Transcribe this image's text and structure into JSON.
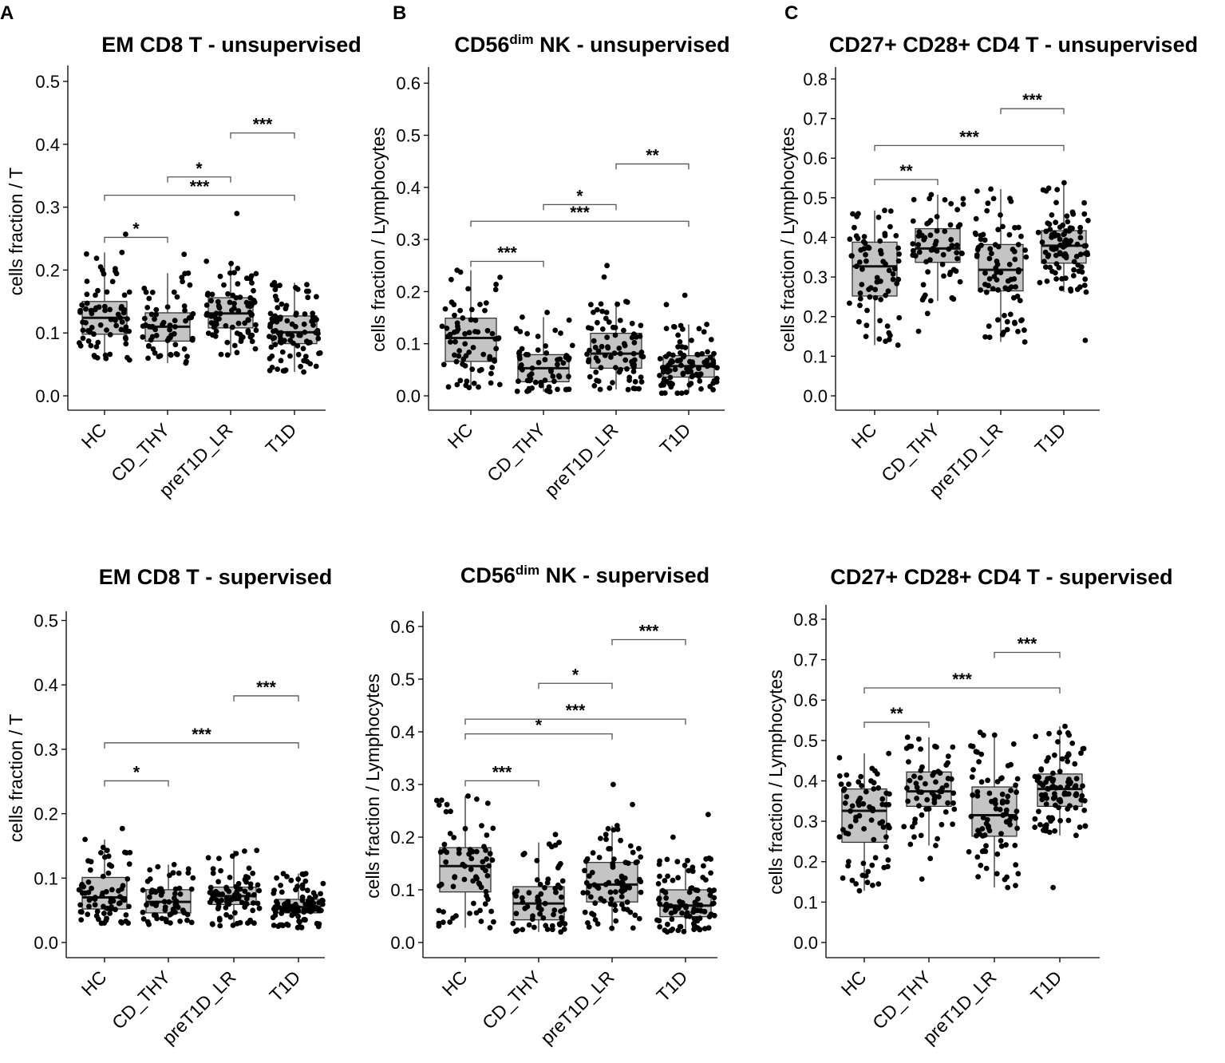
{
  "chart_data": [
    {
      "type": "box",
      "panel_letter": "A",
      "title": "EM CD8 T - unsupervised",
      "title_sup": "",
      "title_rest": "",
      "ylabel": "cells fraction / T",
      "xlabel": "",
      "ylim": [
        0,
        0.52
      ],
      "yticks": [
        "0.0",
        "0.1",
        "0.2",
        "0.3",
        "0.4",
        "0.5"
      ],
      "ytick_values": [
        0,
        0.1,
        0.2,
        0.3,
        0.4,
        0.5
      ],
      "categories": [
        "HC",
        "CD_THY",
        "preT1D_LR",
        "T1D"
      ],
      "boxes": [
        {
          "q1": 0.098,
          "median": 0.124,
          "q3": 0.15,
          "whisker_low": 0.057,
          "whisker_high": 0.228,
          "n": 70,
          "outliers": [
            0.257
          ]
        },
        {
          "q1": 0.087,
          "median": 0.11,
          "q3": 0.132,
          "whisker_low": 0.052,
          "whisker_high": 0.195,
          "n": 60,
          "outliers": [
            0.225
          ]
        },
        {
          "q1": 0.108,
          "median": 0.131,
          "q3": 0.156,
          "whisker_low": 0.065,
          "whisker_high": 0.214,
          "n": 80,
          "outliers": [
            0.29
          ]
        },
        {
          "q1": 0.083,
          "median": 0.101,
          "q3": 0.127,
          "whisker_low": 0.038,
          "whisker_high": 0.18,
          "n": 95,
          "outliers": []
        }
      ],
      "significance": [
        {
          "from": 0,
          "to": 1,
          "label": "*",
          "y": 0.252
        },
        {
          "from": 0,
          "to": 3,
          "label": "***",
          "y": 0.319
        },
        {
          "from": 1,
          "to": 2,
          "label": "*",
          "y": 0.348
        },
        {
          "from": 2,
          "to": 3,
          "label": "***",
          "y": 0.418
        }
      ]
    },
    {
      "type": "box",
      "panel_letter": "B",
      "title": "CD56",
      "title_sup": "dim",
      "title_rest": " NK - unsupervised",
      "ylabel": "cells fraction / Lymphocytes",
      "xlabel": "",
      "ylim": [
        0,
        0.63
      ],
      "yticks": [
        "0.0",
        "0.1",
        "0.2",
        "0.3",
        "0.4",
        "0.5",
        "0.6"
      ],
      "ytick_values": [
        0,
        0.1,
        0.2,
        0.3,
        0.4,
        0.5,
        0.6
      ],
      "categories": [
        "HC",
        "CD_THY",
        "preT1D_LR",
        "T1D"
      ],
      "boxes": [
        {
          "q1": 0.066,
          "median": 0.111,
          "q3": 0.149,
          "whisker_low": 0.016,
          "whisker_high": 0.241,
          "n": 70,
          "outliers": []
        },
        {
          "q1": 0.027,
          "median": 0.053,
          "q3": 0.079,
          "whisker_low": 0.008,
          "whisker_high": 0.151,
          "n": 60,
          "outliers": [
            0.16
          ]
        },
        {
          "q1": 0.053,
          "median": 0.081,
          "q3": 0.12,
          "whisker_low": 0.012,
          "whisker_high": 0.181,
          "n": 80,
          "outliers": [
            0.25,
            0.228
          ]
        },
        {
          "q1": 0.036,
          "median": 0.057,
          "q3": 0.077,
          "whisker_low": 0.005,
          "whisker_high": 0.137,
          "n": 95,
          "outliers": [
            0.193,
            0.175
          ]
        }
      ],
      "significance": [
        {
          "from": 0,
          "to": 1,
          "label": "***",
          "y": 0.258
        },
        {
          "from": 0,
          "to": 3,
          "label": "***",
          "y": 0.335
        },
        {
          "from": 1,
          "to": 2,
          "label": "*",
          "y": 0.367
        },
        {
          "from": 2,
          "to": 3,
          "label": "**",
          "y": 0.445
        }
      ]
    },
    {
      "type": "box",
      "panel_letter": "C",
      "title": "CD27+ CD28+ CD4 T - unsupervised",
      "title_sup": "",
      "title_rest": "",
      "ylabel": "cells fraction / Lymphocytes",
      "xlabel": "",
      "ylim": [
        0,
        0.83
      ],
      "yticks": [
        "0.0",
        "0.1",
        "0.2",
        "0.3",
        "0.4",
        "0.5",
        "0.6",
        "0.7",
        "0.8"
      ],
      "ytick_values": [
        0,
        0.1,
        0.2,
        0.3,
        0.4,
        0.5,
        0.6,
        0.7,
        0.8
      ],
      "categories": [
        "HC",
        "CD_THY",
        "preT1D_LR",
        "T1D"
      ],
      "boxes": [
        {
          "q1": 0.252,
          "median": 0.327,
          "q3": 0.388,
          "whisker_low": 0.128,
          "whisker_high": 0.468,
          "n": 70,
          "outliers": []
        },
        {
          "q1": 0.337,
          "median": 0.372,
          "q3": 0.422,
          "whisker_low": 0.24,
          "whisker_high": 0.508,
          "n": 60,
          "outliers": [
            0.208,
            0.163
          ]
        },
        {
          "q1": 0.265,
          "median": 0.318,
          "q3": 0.382,
          "whisker_low": 0.136,
          "whisker_high": 0.522,
          "n": 80,
          "outliers": []
        },
        {
          "q1": 0.335,
          "median": 0.379,
          "q3": 0.417,
          "whisker_low": 0.262,
          "whisker_high": 0.538,
          "n": 95,
          "outliers": [
            0.14
          ]
        }
      ],
      "significance": [
        {
          "from": 0,
          "to": 1,
          "label": "**",
          "y": 0.546
        },
        {
          "from": 0,
          "to": 3,
          "label": "***",
          "y": 0.632
        },
        {
          "from": 2,
          "to": 3,
          "label": "***",
          "y": 0.725
        }
      ]
    },
    {
      "type": "box",
      "panel_letter": "",
      "title": "EM CD8 T - supervised",
      "title_sup": "",
      "title_rest": "",
      "ylabel": "cells fraction / T",
      "xlabel": "",
      "ylim": [
        0,
        0.52
      ],
      "yticks": [
        "0.0",
        "0.1",
        "0.2",
        "0.3",
        "0.4",
        "0.5"
      ],
      "ytick_values": [
        0,
        0.1,
        0.2,
        0.3,
        0.4,
        0.5
      ],
      "categories": [
        "HC",
        "CD_THY",
        "preT1D_LR",
        "T1D"
      ],
      "boxes": [
        {
          "q1": 0.052,
          "median": 0.07,
          "q3": 0.101,
          "whisker_low": 0.03,
          "whisker_high": 0.16,
          "n": 70,
          "outliers": [
            0.177
          ]
        },
        {
          "q1": 0.046,
          "median": 0.063,
          "q3": 0.082,
          "whisker_low": 0.028,
          "whisker_high": 0.121,
          "n": 60,
          "outliers": []
        },
        {
          "q1": 0.059,
          "median": 0.072,
          "q3": 0.086,
          "whisker_low": 0.026,
          "whisker_high": 0.143,
          "n": 80,
          "outliers": []
        },
        {
          "q1": 0.046,
          "median": 0.055,
          "q3": 0.067,
          "whisker_low": 0.023,
          "whisker_high": 0.107,
          "n": 95,
          "outliers": []
        }
      ],
      "significance": [
        {
          "from": 0,
          "to": 1,
          "label": "*",
          "y": 0.251
        },
        {
          "from": 0,
          "to": 3,
          "label": "***",
          "y": 0.31
        },
        {
          "from": 2,
          "to": 3,
          "label": "***",
          "y": 0.383
        }
      ]
    },
    {
      "type": "box",
      "panel_letter": "",
      "title": "CD56",
      "title_sup": "dim",
      "title_rest": " NK - supervised",
      "ylabel": "cells fraction / Lymphocytes",
      "xlabel": "",
      "ylim": [
        0,
        0.63
      ],
      "yticks": [
        "0.0",
        "0.1",
        "0.2",
        "0.3",
        "0.4",
        "0.5",
        "0.6"
      ],
      "ytick_values": [
        0,
        0.1,
        0.2,
        0.3,
        0.4,
        0.5,
        0.6
      ],
      "categories": [
        "HC",
        "CD_THY",
        "preT1D_LR",
        "T1D"
      ],
      "boxes": [
        {
          "q1": 0.096,
          "median": 0.145,
          "q3": 0.18,
          "whisker_low": 0.028,
          "whisker_high": 0.278,
          "n": 70,
          "outliers": []
        },
        {
          "q1": 0.043,
          "median": 0.074,
          "q3": 0.106,
          "whisker_low": 0.02,
          "whisker_high": 0.19,
          "n": 60,
          "outliers": [
            0.205
          ]
        },
        {
          "q1": 0.077,
          "median": 0.11,
          "q3": 0.152,
          "whisker_low": 0.027,
          "whisker_high": 0.222,
          "n": 80,
          "outliers": [
            0.3,
            0.262
          ]
        },
        {
          "q1": 0.049,
          "median": 0.07,
          "q3": 0.1,
          "whisker_low": 0.02,
          "whisker_high": 0.16,
          "n": 95,
          "outliers": [
            0.243,
            0.2
          ]
        }
      ],
      "significance": [
        {
          "from": 0,
          "to": 1,
          "label": "***",
          "y": 0.307
        },
        {
          "from": 0,
          "to": 2,
          "label": "*",
          "y": 0.396
        },
        {
          "from": 0,
          "to": 3,
          "label": "***",
          "y": 0.424
        },
        {
          "from": 1,
          "to": 2,
          "label": "*",
          "y": 0.492
        },
        {
          "from": 2,
          "to": 3,
          "label": "***",
          "y": 0.575
        }
      ]
    },
    {
      "type": "box",
      "panel_letter": "",
      "title": "CD27+ CD28+ CD4 T - supervised",
      "title_sup": "",
      "title_rest": "",
      "ylabel": "cells fraction / Lymphocytes",
      "xlabel": "",
      "ylim": [
        0,
        0.83
      ],
      "yticks": [
        "0.0",
        "0.1",
        "0.2",
        "0.3",
        "0.4",
        "0.5",
        "0.6",
        "0.7",
        "0.8"
      ],
      "ytick_values": [
        0,
        0.1,
        0.2,
        0.3,
        0.4,
        0.5,
        0.6,
        0.7,
        0.8
      ],
      "categories": [
        "HC",
        "CD_THY",
        "preT1D_LR",
        "T1D"
      ],
      "boxes": [
        {
          "q1": 0.248,
          "median": 0.326,
          "q3": 0.38,
          "whisker_low": 0.128,
          "whisker_high": 0.468,
          "n": 70,
          "outliers": []
        },
        {
          "q1": 0.337,
          "median": 0.374,
          "q3": 0.422,
          "whisker_low": 0.24,
          "whisker_high": 0.508,
          "n": 60,
          "outliers": [
            0.208,
            0.157
          ]
        },
        {
          "q1": 0.263,
          "median": 0.315,
          "q3": 0.385,
          "whisker_low": 0.136,
          "whisker_high": 0.52,
          "n": 80,
          "outliers": []
        },
        {
          "q1": 0.337,
          "median": 0.38,
          "q3": 0.417,
          "whisker_low": 0.265,
          "whisker_high": 0.535,
          "n": 95,
          "outliers": [
            0.136
          ]
        }
      ],
      "significance": [
        {
          "from": 0,
          "to": 1,
          "label": "**",
          "y": 0.545
        },
        {
          "from": 0,
          "to": 3,
          "label": "***",
          "y": 0.63
        },
        {
          "from": 2,
          "to": 3,
          "label": "***",
          "y": 0.718
        }
      ]
    }
  ]
}
